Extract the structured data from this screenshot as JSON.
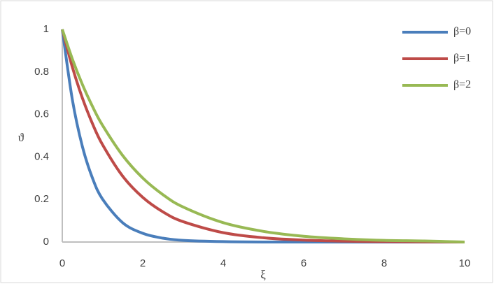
{
  "chart_data": {
    "type": "line",
    "x_label": "ξ",
    "y_label": "ϑ",
    "x": [
      0,
      0.25,
      0.5,
      0.75,
      1,
      1.5,
      2,
      2.5,
      3,
      4,
      5,
      6,
      7,
      8,
      9,
      10
    ],
    "series": [
      {
        "name": "β=0",
        "color": "#4a7ebb",
        "values": [
          1,
          0.67,
          0.449,
          0.301,
          0.202,
          0.091,
          0.041,
          0.018,
          0.008,
          0.002,
          0,
          0,
          0,
          0,
          0,
          0
        ]
      },
      {
        "name": "β=1",
        "color": "#be4b48",
        "values": [
          1,
          0.823,
          0.677,
          0.557,
          0.458,
          0.31,
          0.21,
          0.142,
          0.096,
          0.044,
          0.02,
          0.009,
          0.004,
          0.002,
          0.001,
          0
        ]
      },
      {
        "name": "β=2",
        "color": "#98b954",
        "values": [
          1,
          0.861,
          0.741,
          0.638,
          0.549,
          0.407,
          0.301,
          0.223,
          0.165,
          0.091,
          0.05,
          0.027,
          0.015,
          0.008,
          0.005,
          0
        ]
      }
    ],
    "xlim": [
      0,
      10
    ],
    "xticks": [
      0,
      2,
      4,
      6,
      8,
      10
    ],
    "ylim": [
      0,
      1
    ],
    "yticks": [
      0,
      0.2,
      0.4,
      0.6,
      0.8,
      1
    ],
    "grid": false,
    "legend": "top-right"
  }
}
